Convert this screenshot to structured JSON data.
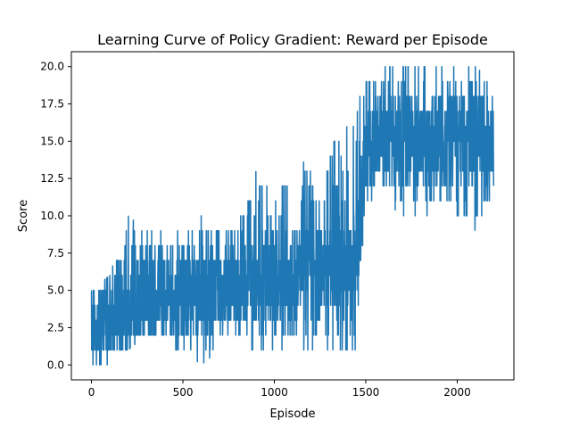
{
  "chart_data": {
    "type": "line",
    "title": "Learning Curve of Policy Gradient: Reward per Episode",
    "xlabel": "Episode",
    "ylabel": "Score",
    "xlim": [
      -110,
      2310
    ],
    "ylim": [
      -1,
      21
    ],
    "xticks": [
      0,
      500,
      1000,
      1500,
      2000
    ],
    "xtick_labels": [
      "0",
      "500",
      "1000",
      "1500",
      "2000"
    ],
    "yticks": [
      0,
      2.5,
      5,
      7.5,
      10,
      12.5,
      15,
      17.5,
      20
    ],
    "ytick_labels": [
      "0.0",
      "2.5",
      "5.0",
      "7.5",
      "10.0",
      "12.5",
      "15.0",
      "17.5",
      "20.0"
    ],
    "grid": false,
    "series": [
      {
        "color": "#1f77b4",
        "x": [
          0,
          100,
          200,
          300,
          400,
          500,
          600,
          700,
          800,
          900,
          1000,
          1100,
          1200,
          1300,
          1400,
          1450,
          1500,
          1600,
          1700,
          1800,
          1900,
          2000,
          2100,
          2190
        ],
        "mean": [
          2.5,
          3,
          3.5,
          4,
          4.5,
          4.5,
          4.5,
          5,
          5,
          5.5,
          5.5,
          6,
          6.5,
          6.5,
          6.5,
          7,
          14.5,
          15.5,
          15,
          15,
          15.5,
          15.5,
          15,
          15
        ],
        "low": [
          0,
          0,
          1,
          2,
          1,
          1,
          0,
          1,
          1,
          1,
          1,
          1,
          1,
          1,
          1,
          1,
          11,
          11,
          10,
          10,
          10,
          10,
          9,
          10
        ],
        "high": [
          5,
          6,
          10,
          9,
          9,
          9,
          10,
          9,
          10,
          13,
          12,
          13,
          14,
          15,
          16,
          17,
          20,
          20,
          20,
          20,
          20,
          20,
          20,
          19
        ],
        "n_episodes": 2200
      }
    ]
  },
  "colors": {
    "line": "#1f77b4",
    "axes": "#000000",
    "background": "#ffffff"
  }
}
